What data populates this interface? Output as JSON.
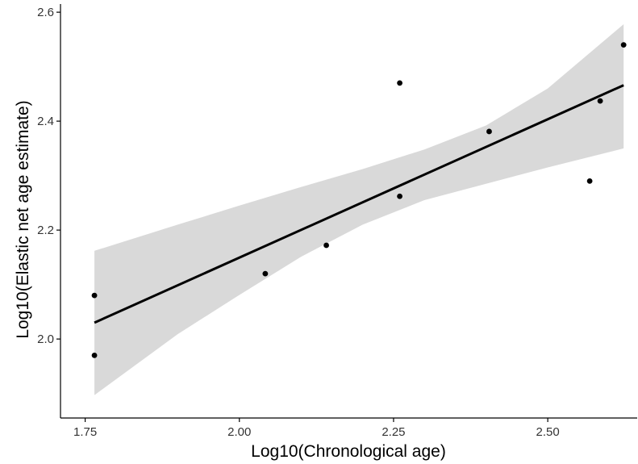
{
  "chart_data": {
    "type": "scatter",
    "xlabel": "Log10(Chronological age)",
    "ylabel": "Log10(Elastic net age estimate)",
    "xlim": [
      1.71,
      2.645
    ],
    "ylim": [
      1.855,
      2.615
    ],
    "x_ticks": [
      1.75,
      2.0,
      2.25,
      2.5
    ],
    "x_tick_labels": [
      "1.75",
      "2.00",
      "2.25",
      "2.50"
    ],
    "y_ticks": [
      2.0,
      2.2,
      2.4,
      2.6
    ],
    "y_tick_labels": [
      "2.0",
      "2.2",
      "2.4",
      "2.6"
    ],
    "grid": false,
    "points": [
      {
        "x": 1.765,
        "y": 2.08
      },
      {
        "x": 1.765,
        "y": 1.97
      },
      {
        "x": 2.042,
        "y": 2.12
      },
      {
        "x": 2.141,
        "y": 2.172
      },
      {
        "x": 2.26,
        "y": 2.47
      },
      {
        "x": 2.26,
        "y": 2.262
      },
      {
        "x": 2.405,
        "y": 2.381
      },
      {
        "x": 2.568,
        "y": 2.29
      },
      {
        "x": 2.585,
        "y": 2.437
      },
      {
        "x": 2.623,
        "y": 2.54
      }
    ],
    "regression_line": {
      "x": [
        1.765,
        2.623
      ],
      "y": [
        2.03,
        2.466
      ]
    },
    "confidence_band": {
      "x": [
        1.765,
        1.9,
        2.0,
        2.1,
        2.2,
        2.3,
        2.4,
        2.5,
        2.623
      ],
      "upper": [
        2.162,
        2.21,
        2.245,
        2.279,
        2.312,
        2.348,
        2.392,
        2.46,
        2.578
      ],
      "lower": [
        1.897,
        2.009,
        2.081,
        2.151,
        2.21,
        2.255,
        2.285,
        2.315,
        2.35
      ]
    },
    "colors": {
      "points": "#000000",
      "line": "#000000",
      "band": "#d9d9d9",
      "axis": "#000000"
    }
  }
}
